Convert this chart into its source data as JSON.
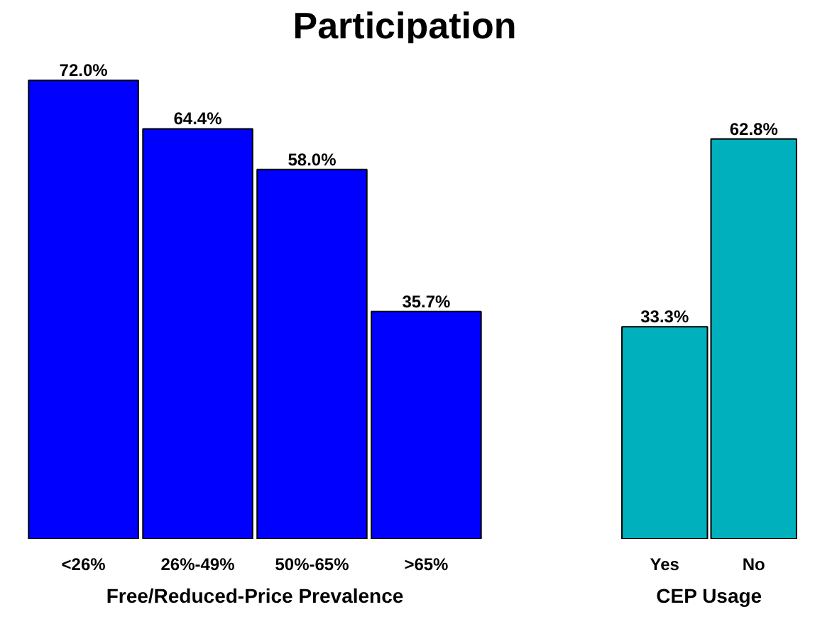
{
  "chart_data": [
    {
      "type": "bar",
      "title": "Participation",
      "xlabel": "Free/Reduced-Price Prevalence",
      "categories": [
        "<26%",
        "26%-49%",
        "50%-65%",
        ">65%"
      ],
      "values": [
        72.0,
        64.4,
        58.0,
        35.7
      ],
      "value_labels": [
        "72.0%",
        "64.4%",
        "58.0%",
        "35.7%"
      ],
      "color": "#0000ff",
      "tick_labels": "x"
    },
    {
      "type": "bar",
      "xlabel": "CEP Usage",
      "categories": [
        "Yes",
        "No"
      ],
      "values": [
        33.3,
        62.8
      ],
      "value_labels": [
        "33.3%",
        "62.8%"
      ],
      "color": "#00b0bc",
      "tick_labels": "x"
    }
  ]
}
